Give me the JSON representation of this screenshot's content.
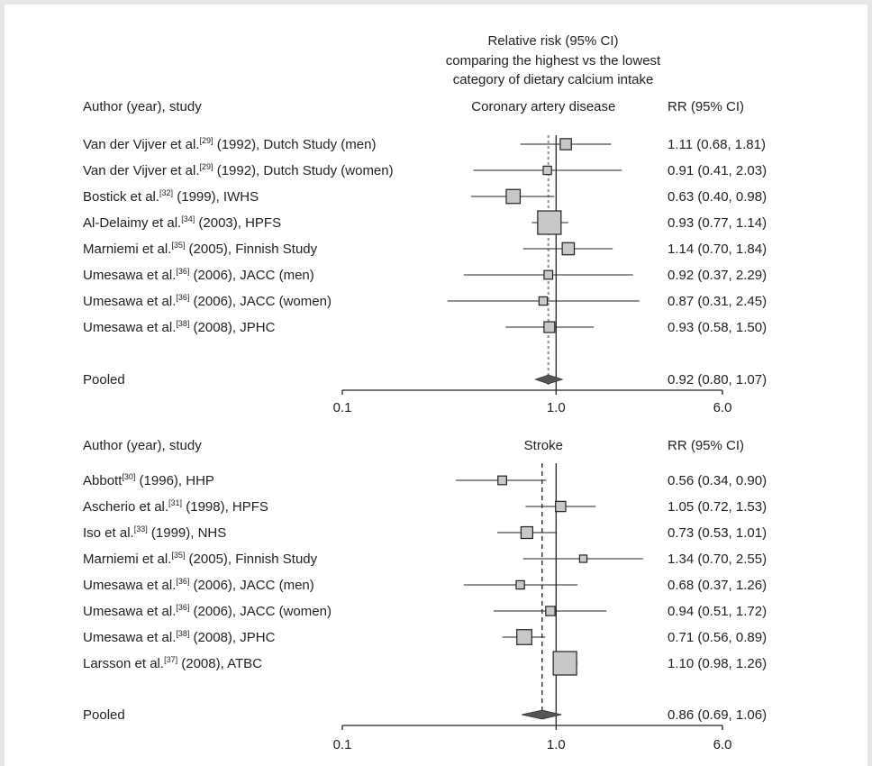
{
  "header_lines": [
    "Relative risk (95% CI)",
    "comparing the highest vs the lowest",
    "category of dietary calcium intake"
  ],
  "chart_data": [
    {
      "type": "forest",
      "title": "Coronary artery disease",
      "col_study": "Author (year), study",
      "col_rr": "RR (95% CI)",
      "scale": "log",
      "xlim": [
        0.1,
        6.0
      ],
      "ticks": [
        "0.1",
        "1.0",
        "6.0"
      ],
      "reference_line": 1.0,
      "pooled_line": 0.92,
      "studies": [
        {
          "author": "Van der Vijver et al.",
          "ref": "[29]",
          "rest": " (1992), Dutch Study (men)",
          "rr": 1.11,
          "lo": 0.68,
          "hi": 1.81,
          "ci_text": "1.11 (0.68, 1.81)",
          "weight": 0.35
        },
        {
          "author": "Van der Vijver et al.",
          "ref": "[29]",
          "rest": " (1992), Dutch Study (women)",
          "rr": 0.91,
          "lo": 0.41,
          "hi": 2.03,
          "ci_text": "0.91 (0.41, 2.03)",
          "weight": 0.2
        },
        {
          "author": "Bostick et al.",
          "ref": "[32]",
          "rest": " (1999), IWHS",
          "rr": 0.63,
          "lo": 0.4,
          "hi": 0.98,
          "ci_text": "0.63 (0.40, 0.98)",
          "weight": 0.5
        },
        {
          "author": "Al-Delaimy et al.",
          "ref": "[34]",
          "rest": " (2003), HPFS",
          "rr": 0.93,
          "lo": 0.77,
          "hi": 1.14,
          "ci_text": "0.93 (0.77, 1.14)",
          "weight": 1.0
        },
        {
          "author": "Marniemi et al.",
          "ref": "[35]",
          "rest": " (2005), Finnish Study",
          "rr": 1.14,
          "lo": 0.7,
          "hi": 1.84,
          "ci_text": "1.14 (0.70, 1.84)",
          "weight": 0.4
        },
        {
          "author": "Umesawa et al.",
          "ref": "[36]",
          "rest": " (2006), JACC (men)",
          "rr": 0.92,
          "lo": 0.37,
          "hi": 2.29,
          "ci_text": "0.92 (0.37, 2.29)",
          "weight": 0.22
        },
        {
          "author": "Umesawa et al.",
          "ref": "[36]",
          "rest": " (2006), JACC (women)",
          "rr": 0.87,
          "lo": 0.31,
          "hi": 2.45,
          "ci_text": "0.87 (0.31, 2.45)",
          "weight": 0.2
        },
        {
          "author": "Umesawa et al.",
          "ref": "[38]",
          "rest": " (2008), JPHC",
          "rr": 0.93,
          "lo": 0.58,
          "hi": 1.5,
          "ci_text": "0.93 (0.58, 1.50)",
          "weight": 0.33
        }
      ],
      "pooled": {
        "label": "Pooled",
        "rr": 0.92,
        "lo": 0.8,
        "hi": 1.07,
        "ci_text": "0.92 (0.80, 1.07)"
      }
    },
    {
      "type": "forest",
      "title": "Stroke",
      "col_study": "Author (year), study",
      "col_rr": "RR (95% CI)",
      "scale": "log",
      "xlim": [
        0.1,
        6.0
      ],
      "ticks": [
        "0.1",
        "1.0",
        "6.0"
      ],
      "reference_line": 1.0,
      "pooled_line": 0.86,
      "studies": [
        {
          "author": "Abbott",
          "ref": "[30]",
          "rest": " (1996), HHP",
          "rr": 0.56,
          "lo": 0.34,
          "hi": 0.9,
          "ci_text": "0.56 (0.34, 0.90)",
          "weight": 0.22
        },
        {
          "author": "Ascherio et al.",
          "ref": "[31]",
          "rest": " (1998), HPFS",
          "rr": 1.05,
          "lo": 0.72,
          "hi": 1.53,
          "ci_text": "1.05 (0.72, 1.53)",
          "weight": 0.3
        },
        {
          "author": "Iso et al.",
          "ref": "[33]",
          "rest": " (1999), NHS",
          "rr": 0.73,
          "lo": 0.53,
          "hi": 1.01,
          "ci_text": "0.73 (0.53, 1.01)",
          "weight": 0.38
        },
        {
          "author": "Marniemi et al.",
          "ref": "[35]",
          "rest": " (2005), Finnish Study",
          "rr": 1.34,
          "lo": 0.7,
          "hi": 2.55,
          "ci_text": "1.34 (0.70, 2.55)",
          "weight": 0.15
        },
        {
          "author": "Umesawa et al.",
          "ref": "[36]",
          "rest": " (2006), JACC (men)",
          "rr": 0.68,
          "lo": 0.37,
          "hi": 1.26,
          "ci_text": "0.68 (0.37, 1.26)",
          "weight": 0.2
        },
        {
          "author": "Umesawa et al.",
          "ref": "[36]",
          "rest": " (2006), JACC (women)",
          "rr": 0.94,
          "lo": 0.51,
          "hi": 1.72,
          "ci_text": "0.94 (0.51, 1.72)",
          "weight": 0.25
        },
        {
          "author": "Umesawa et al.",
          "ref": "[38]",
          "rest": " (2008), JPHC",
          "rr": 0.71,
          "lo": 0.56,
          "hi": 0.89,
          "ci_text": "0.71 (0.56, 0.89)",
          "weight": 0.55
        },
        {
          "author": "Larsson et al.",
          "ref": "[37]",
          "rest": " (2008), ATBC",
          "rr": 1.1,
          "lo": 0.98,
          "hi": 1.26,
          "ci_text": "1.10 (0.98, 1.26)",
          "weight": 1.0
        }
      ],
      "pooled": {
        "label": "Pooled",
        "rr": 0.86,
        "lo": 0.69,
        "hi": 1.06,
        "ci_text": "0.86 (0.69, 1.06)"
      }
    }
  ]
}
